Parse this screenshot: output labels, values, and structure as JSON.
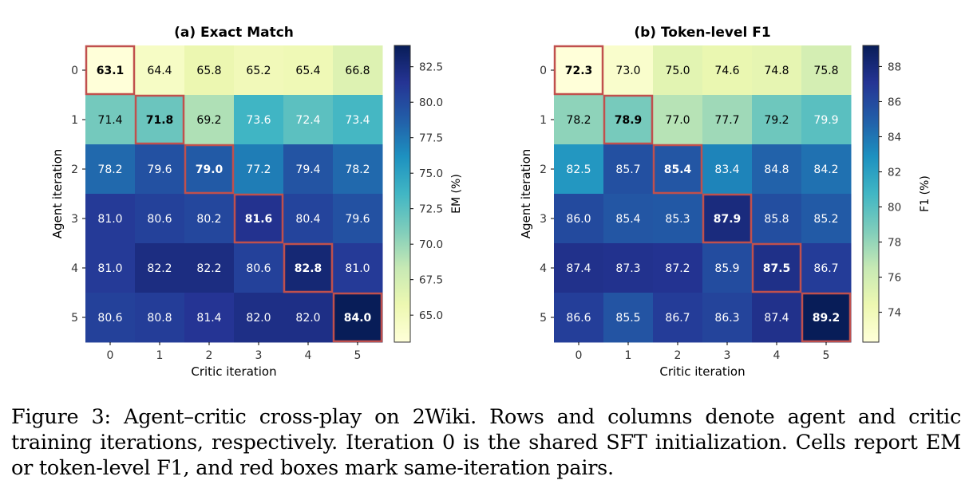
{
  "figure": {
    "caption": "Figure 3: Agent–critic cross-play on 2Wiki. Rows and columns denote agent and critic training iterations, respectively. Iteration 0 is the shared SFT initialization. Cells report EM or token-level F1, and red boxes mark same-iteration pairs."
  },
  "chart_data": [
    {
      "type": "heatmap",
      "title": "(a) Exact Match",
      "xlabel": "Critic iteration",
      "ylabel": "Agent iteration",
      "x_ticks": [
        "0",
        "1",
        "2",
        "3",
        "4",
        "5"
      ],
      "y_ticks": [
        "0",
        "1",
        "2",
        "3",
        "4",
        "5"
      ],
      "values": [
        [
          63.1,
          64.4,
          65.8,
          65.2,
          65.4,
          66.8
        ],
        [
          71.4,
          71.8,
          69.2,
          73.6,
          72.4,
          73.4
        ],
        [
          78.2,
          79.6,
          79.0,
          77.2,
          79.4,
          78.2
        ],
        [
          81.0,
          80.6,
          80.2,
          81.6,
          80.4,
          79.6
        ],
        [
          81.0,
          82.2,
          82.2,
          80.6,
          82.8,
          81.0
        ],
        [
          80.6,
          80.8,
          81.4,
          82.0,
          82.0,
          84.0
        ]
      ],
      "colorbar": {
        "label": "EM (%)",
        "ticks": [
          "65.0",
          "67.5",
          "70.0",
          "72.5",
          "75.0",
          "77.5",
          "80.0",
          "82.5"
        ],
        "vmin": 63.1,
        "vmax": 84.0
      },
      "colormap": "YlGnBu",
      "highlight": "diagonal",
      "highlight_color": "#c0504d"
    },
    {
      "type": "heatmap",
      "title": "(b) Token-level F1",
      "xlabel": "Critic iteration",
      "ylabel": "Agent iteration",
      "x_ticks": [
        "0",
        "1",
        "2",
        "3",
        "4",
        "5"
      ],
      "y_ticks": [
        "0",
        "1",
        "2",
        "3",
        "4",
        "5"
      ],
      "values": [
        [
          72.3,
          73.0,
          75.0,
          74.6,
          74.8,
          75.8
        ],
        [
          78.2,
          78.9,
          77.0,
          77.7,
          79.2,
          79.9
        ],
        [
          82.5,
          85.7,
          85.4,
          83.4,
          84.8,
          84.2
        ],
        [
          86.0,
          85.4,
          85.3,
          87.9,
          85.8,
          85.2
        ],
        [
          87.4,
          87.3,
          87.2,
          85.9,
          87.5,
          86.7
        ],
        [
          86.6,
          85.5,
          86.7,
          86.3,
          87.4,
          89.2
        ]
      ],
      "colorbar": {
        "label": "F1 (%)",
        "ticks": [
          "74",
          "76",
          "78",
          "80",
          "82",
          "84",
          "86",
          "88"
        ],
        "vmin": 72.3,
        "vmax": 89.2
      },
      "colormap": "YlGnBu",
      "highlight": "diagonal",
      "highlight_color": "#c0504d"
    }
  ]
}
